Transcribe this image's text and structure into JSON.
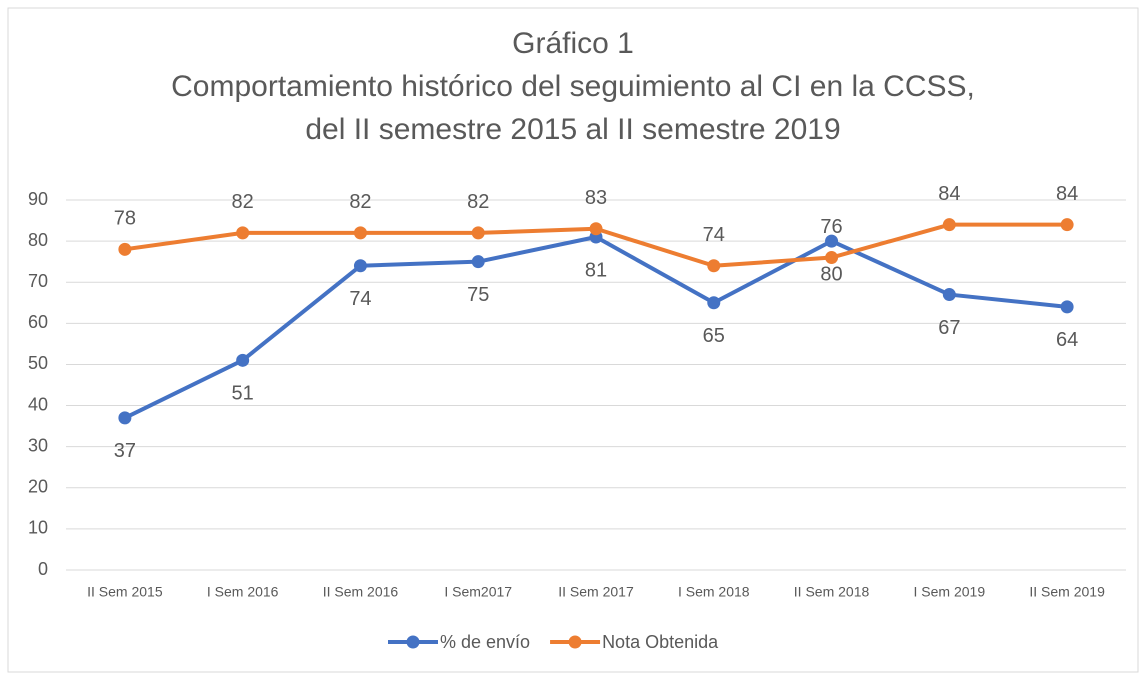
{
  "chart_data": {
    "type": "line",
    "title": [
      "Gráfico 1",
      "Comportamiento histórico del seguimiento al CI en la CCSS,",
      "del II semestre 2015 al II semestre 2019"
    ],
    "categories": [
      "II Sem 2015",
      "I Sem 2016",
      "II Sem 2016",
      "I Sem2017",
      "II Sem 2017",
      "I Sem 2018",
      "II Sem 2018",
      "I Sem 2019",
      "II Sem 2019"
    ],
    "series": [
      {
        "name": "% de envío",
        "color": "#4472c4",
        "values": [
          37,
          51,
          74,
          75,
          81,
          65,
          80,
          67,
          64
        ],
        "label_position": "below"
      },
      {
        "name": "Nota Obtenida",
        "color": "#ed7d31",
        "values": [
          78,
          82,
          82,
          82,
          83,
          74,
          76,
          84,
          84
        ],
        "label_position": "above"
      }
    ],
    "ylim": [
      0,
      90
    ],
    "yticks": [
      0,
      10,
      20,
      30,
      40,
      50,
      60,
      70,
      80,
      90
    ],
    "grid": true,
    "legend": "bottom"
  }
}
